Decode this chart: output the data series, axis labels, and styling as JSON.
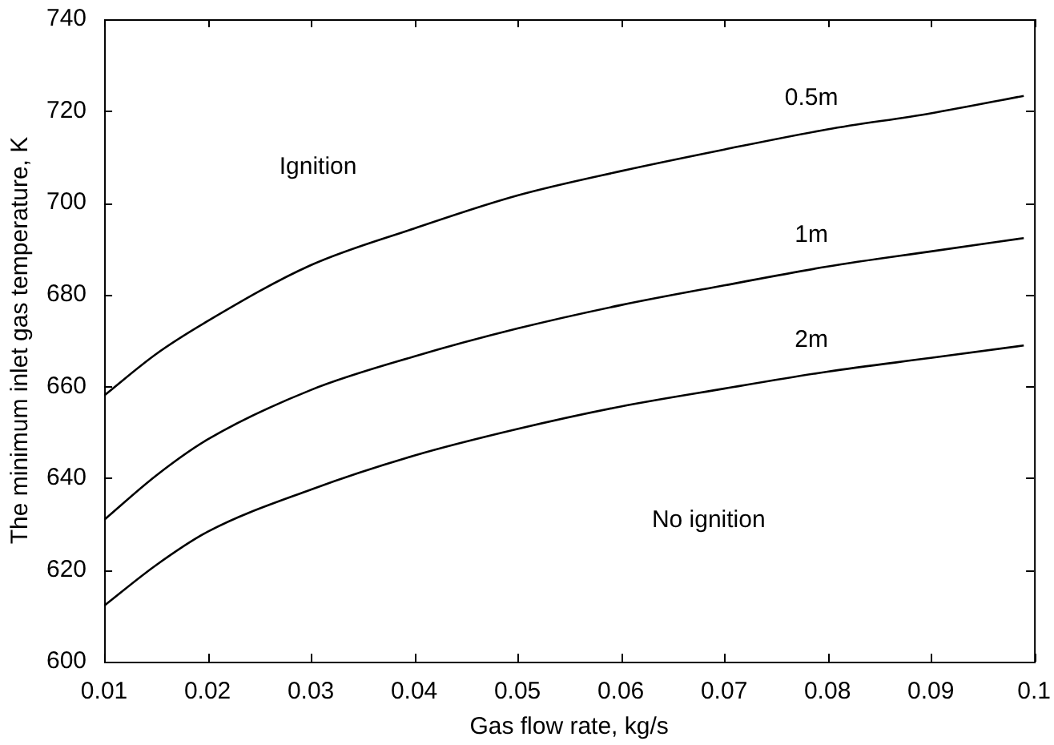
{
  "chart_data": {
    "type": "line",
    "xlabel": "Gas flow rate, kg/s",
    "ylabel": "The minimum inlet gas temperature, K",
    "x": [
      0.01,
      0.015,
      0.02,
      0.03,
      0.04,
      0.05,
      0.06,
      0.07,
      0.08,
      0.09,
      0.099
    ],
    "series": [
      {
        "name": "0.5m",
        "color": "#000000",
        "values": [
          658,
          667,
          674.2,
          686.4,
          694.4,
          701.6,
          706.9,
          711.6,
          716,
          719.5,
          723.3
        ]
      },
      {
        "name": "1m",
        "color": "#000000",
        "values": [
          630.9,
          640.5,
          648.4,
          659.2,
          666.5,
          672.6,
          677.7,
          682,
          686.1,
          689.4,
          692.3
        ]
      },
      {
        "name": "2m",
        "color": "#000000",
        "values": [
          612.2,
          621,
          628.3,
          637.5,
          644.9,
          650.7,
          655.6,
          659.5,
          663.2,
          666.2,
          668.9
        ]
      }
    ],
    "annotations": [
      "Ignition",
      "No ignition"
    ],
    "xlim": [
      0.01,
      0.1
    ],
    "xticks": [
      0.01,
      0.02,
      0.03,
      0.04,
      0.05,
      0.06,
      0.07,
      0.08,
      0.09,
      0.1
    ],
    "ylim": [
      600,
      740
    ],
    "yticks": [
      600,
      620,
      640,
      660,
      680,
      700,
      720,
      740
    ],
    "grid": false,
    "legend": false,
    "marker": "none",
    "line_style": "solid"
  }
}
